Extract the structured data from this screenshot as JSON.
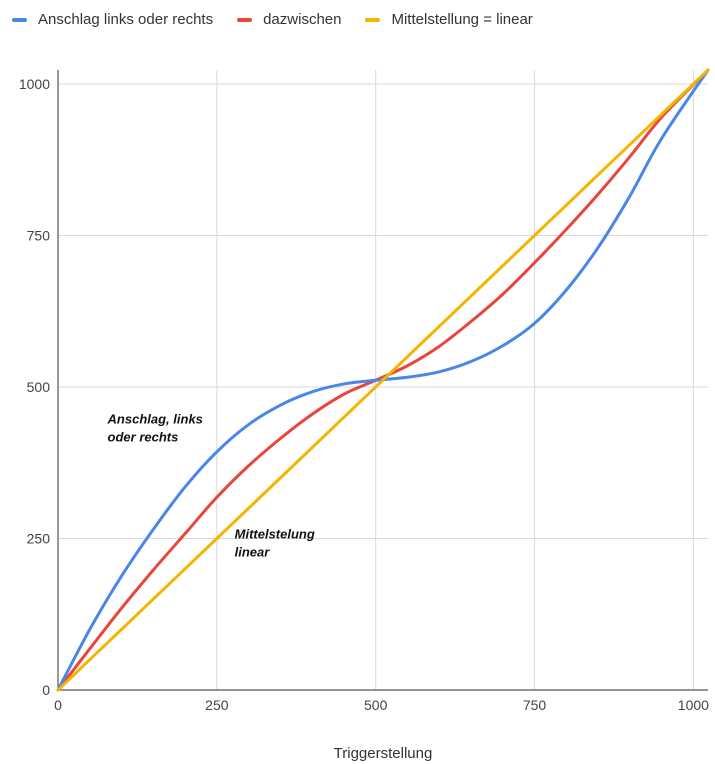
{
  "chart_data": {
    "type": "line",
    "xlabel": "Triggerstellung",
    "ylabel": "",
    "xlim": [
      0,
      1023
    ],
    "ylim": [
      0,
      1023
    ],
    "xticks": [
      0,
      250,
      500,
      750,
      1000
    ],
    "yticks": [
      0,
      250,
      500,
      750,
      1000
    ],
    "xtick_labels": [
      "0",
      "250",
      "500",
      "750",
      "1000"
    ],
    "ytick_labels": [
      "0",
      "250",
      "500",
      "750",
      "1000"
    ],
    "grid": true,
    "legend_position": "top-left",
    "x": [
      0,
      50,
      100,
      150,
      200,
      250,
      300,
      350,
      400,
      450,
      500,
      550,
      600,
      650,
      700,
      750,
      800,
      850,
      900,
      950,
      1023
    ],
    "series": [
      {
        "name": "Anschlag links oder rechts",
        "color": "#4a86e8",
        "values": [
          0,
          100,
          188,
          265,
          335,
          393,
          438,
          470,
          492,
          505,
          511,
          516,
          525,
          542,
          568,
          605,
          660,
          730,
          815,
          910,
          1023
        ]
      },
      {
        "name": "dazwischen",
        "color": "#e8453c",
        "values": [
          0,
          68,
          135,
          198,
          258,
          318,
          370,
          415,
          455,
          488,
          511,
          535,
          567,
          608,
          653,
          705,
          760,
          818,
          880,
          945,
          1023
        ]
      },
      {
        "name": "Mittelstellung = linear",
        "color": "#f4b400",
        "values": [
          0,
          50,
          100,
          150,
          200,
          250,
          300,
          350,
          400,
          450,
          500,
          550,
          600,
          650,
          700,
          750,
          800,
          850,
          900,
          950,
          1023
        ]
      }
    ],
    "annotations": [
      {
        "lines": [
          "Anschlag, links",
          "oder rechts"
        ],
        "x": 78,
        "y": 440
      },
      {
        "lines": [
          "Mittelstelung",
          "linear"
        ],
        "x": 278,
        "y": 250
      }
    ]
  }
}
